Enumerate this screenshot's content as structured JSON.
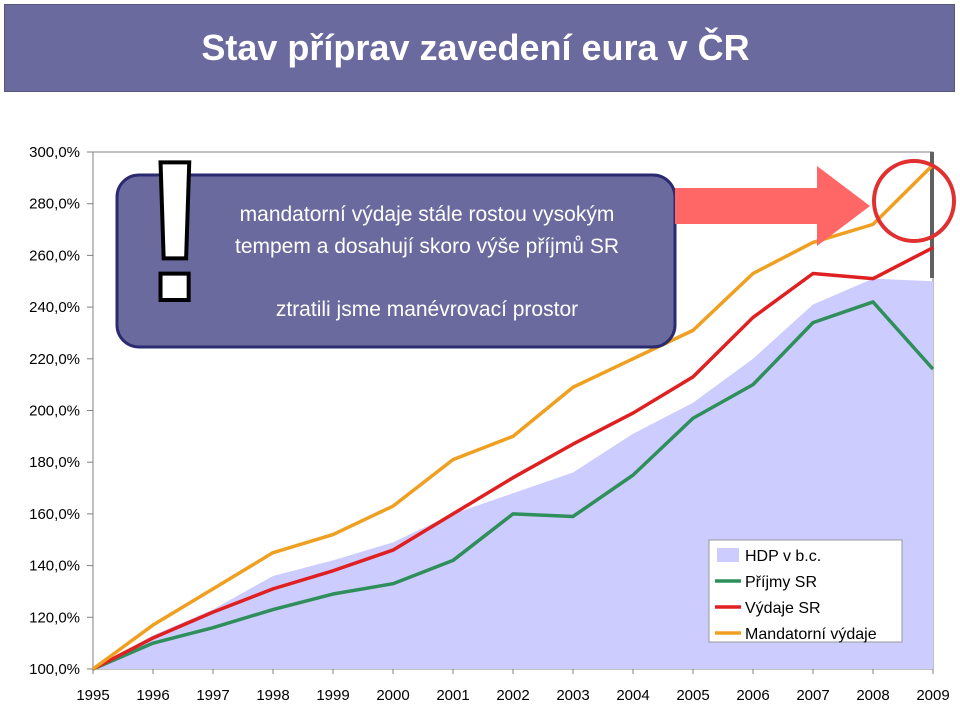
{
  "title": "Stav příprav zavedení eura v ČR",
  "colors": {
    "hdp": "#ccccff",
    "prijmy": "#2f8f5b",
    "vydaje": "#e02020",
    "mandatorni": "#f0a020",
    "callout": "#6a6a9e",
    "arrow": "#ff6666",
    "circle": "#e03030"
  },
  "callout": {
    "line1": "mandatorní výdaje stále rostou vysokým",
    "line2": "tempem a dosahují skoro výše příjmů SR",
    "line3": "ztratili jsme manévrovací prostor",
    "mark": "!"
  },
  "chart_data": {
    "type": "line",
    "x": [
      "1995",
      "1996",
      "1997",
      "1998",
      "1999",
      "2000",
      "2001",
      "2002",
      "2003",
      "2004",
      "2005",
      "2006",
      "2007",
      "2008",
      "2009"
    ],
    "yticks": [
      "300,0%",
      "280,0%",
      "260,0%",
      "240,0%",
      "220,0%",
      "200,0%",
      "180,0%",
      "160,0%",
      "140,0%",
      "120,0%",
      "100,0%"
    ],
    "ylim": [
      100,
      300
    ],
    "series": [
      {
        "name": "HDP v b.c.",
        "kind": "area",
        "colorKey": "hdp",
        "values": [
          100,
          113,
          123,
          136,
          142,
          149,
          160,
          168,
          176,
          191,
          203,
          220,
          241,
          251,
          250
        ]
      },
      {
        "name": "Příjmy SR",
        "kind": "line",
        "colorKey": "prijmy",
        "values": [
          100,
          110,
          116,
          123,
          129,
          133,
          142,
          160,
          159,
          175,
          197,
          210,
          234,
          242,
          216
        ]
      },
      {
        "name": "Výdaje SR",
        "kind": "line",
        "colorKey": "vydaje",
        "values": [
          100,
          112,
          122,
          131,
          138,
          146,
          160,
          174,
          187,
          199,
          213,
          236,
          253,
          251,
          263
        ]
      },
      {
        "name": "Mandatorní výdaje",
        "kind": "line",
        "colorKey": "mandatorni",
        "values": [
          100,
          117,
          131,
          145,
          152,
          163,
          181,
          190,
          209,
          220,
          231,
          253,
          265,
          272,
          295
        ]
      }
    ],
    "legend": "bottom-right"
  }
}
